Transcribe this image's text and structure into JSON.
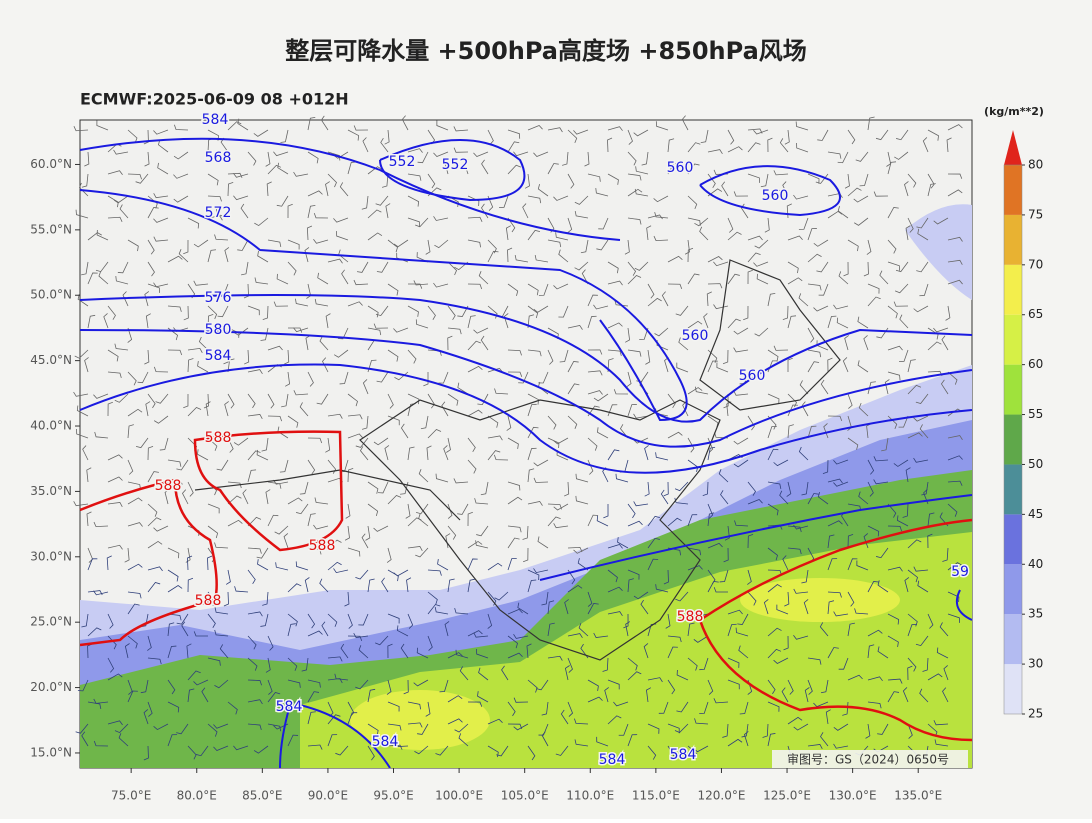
{
  "header": {
    "title": "整层可降水量 +500hPa高度场 +850hPa风场",
    "subtitle": "ECMWF:2025-06-09 08 +012H"
  },
  "map": {
    "lat_ticks": [
      {
        "value": 15,
        "label": "15.0°N"
      },
      {
        "value": 20,
        "label": "20.0°N"
      },
      {
        "value": 25,
        "label": "25.0°N"
      },
      {
        "value": 30,
        "label": "30.0°N"
      },
      {
        "value": 35,
        "label": "35.0°N"
      },
      {
        "value": 40,
        "label": "40.0°N"
      },
      {
        "value": 45,
        "label": "45.0°N"
      },
      {
        "value": 50,
        "label": "50.0°N"
      },
      {
        "value": 55,
        "label": "55.0°N"
      },
      {
        "value": 60,
        "label": "60.0°N"
      }
    ],
    "lon_ticks": [
      {
        "value": 75,
        "label": "75.0°E"
      },
      {
        "value": 80,
        "label": "80.0°E"
      },
      {
        "value": 85,
        "label": "85.0°E"
      },
      {
        "value": 90,
        "label": "90.0°E"
      },
      {
        "value": 95,
        "label": "95.0°E"
      },
      {
        "value": 100,
        "label": "100.0°E"
      },
      {
        "value": 105,
        "label": "105.0°E"
      },
      {
        "value": 110,
        "label": "110.0°E"
      },
      {
        "value": 115,
        "label": "115.0°E"
      },
      {
        "value": 120,
        "label": "120.0°E"
      },
      {
        "value": 125,
        "label": "125.0°E"
      },
      {
        "value": 130,
        "label": "130.0°E"
      },
      {
        "value": 135,
        "label": "135.0°E"
      }
    ],
    "contour_labels": [
      "584",
      "568",
      "552",
      "552",
      "572",
      "560",
      "560",
      "576",
      "580",
      "584",
      "560",
      "560",
      "588",
      "588",
      "588",
      "588",
      "588",
      "584",
      "584",
      "584",
      "584",
      "59"
    ],
    "footnote": "审图号：GS（2024）0650号"
  },
  "colorbar": {
    "unit": "(kg/m**2)",
    "levels": [
      25,
      30,
      35,
      40,
      45,
      50,
      55,
      60,
      65,
      70,
      75,
      80
    ],
    "colors": [
      "#dfe2f6",
      "#b3bbf1",
      "#8f99ea",
      "#6a72de",
      "#4c8e98",
      "#5fa84a",
      "#9fe23c",
      "#d6f046",
      "#f3ee4c",
      "#e8b232",
      "#e07424",
      "#e0241c"
    ]
  }
}
